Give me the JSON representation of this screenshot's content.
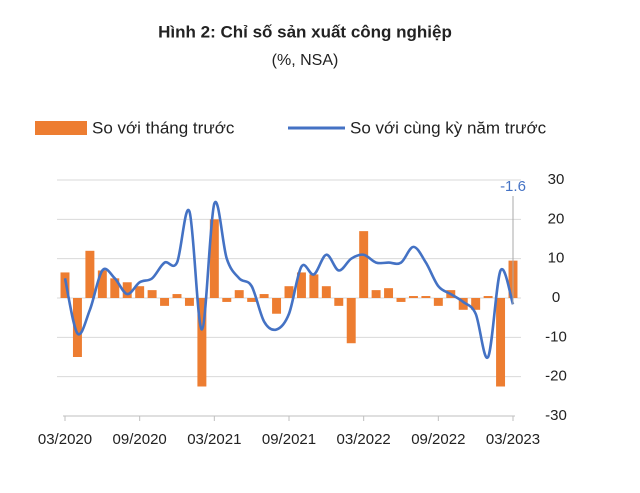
{
  "chart_data": {
    "type": "bar_line",
    "title": "Hình 2: Chỉ số sản xuất công nghiệp",
    "subtitle": "(%, NSA)",
    "categories": [
      "03/2020",
      null,
      null,
      null,
      null,
      null,
      "09/2020",
      null,
      null,
      null,
      null,
      null,
      "03/2021",
      null,
      null,
      null,
      null,
      null,
      "09/2021",
      null,
      null,
      null,
      null,
      null,
      "03/2022",
      null,
      null,
      null,
      null,
      null,
      "09/2022",
      null,
      null,
      null,
      null,
      null,
      "03/2023"
    ],
    "series": [
      {
        "name": "So với tháng trước",
        "type": "bar",
        "color": "#ed7d31",
        "values": [
          6.5,
          -15,
          12,
          7,
          5,
          4,
          3,
          2,
          -2,
          1,
          -2,
          -22.5,
          20,
          -1,
          2,
          -1,
          1,
          -4,
          3,
          6.5,
          6,
          3,
          -2,
          -11.5,
          17,
          2,
          2.5,
          -1,
          0.5,
          0.5,
          -2,
          2,
          -3,
          -3,
          0.5,
          -22.5,
          9.5
        ]
      },
      {
        "name": "So với cùng kỳ năm trước",
        "type": "line",
        "color": "#4472c4",
        "values": [
          5,
          -9,
          -3,
          7,
          5,
          1,
          4,
          5,
          9,
          9,
          22,
          -8,
          24,
          10,
          5,
          3,
          -6,
          -8,
          -4,
          8,
          6,
          11,
          7,
          10,
          11,
          9,
          9,
          9,
          13,
          9,
          3,
          1,
          -1,
          -4,
          -15,
          7,
          -1.6
        ]
      }
    ],
    "annotation": "-1.6",
    "ylim": [
      -30,
      30
    ],
    "yticks": [
      -30,
      -20,
      -10,
      0,
      10,
      20,
      30
    ],
    "grid": true
  }
}
